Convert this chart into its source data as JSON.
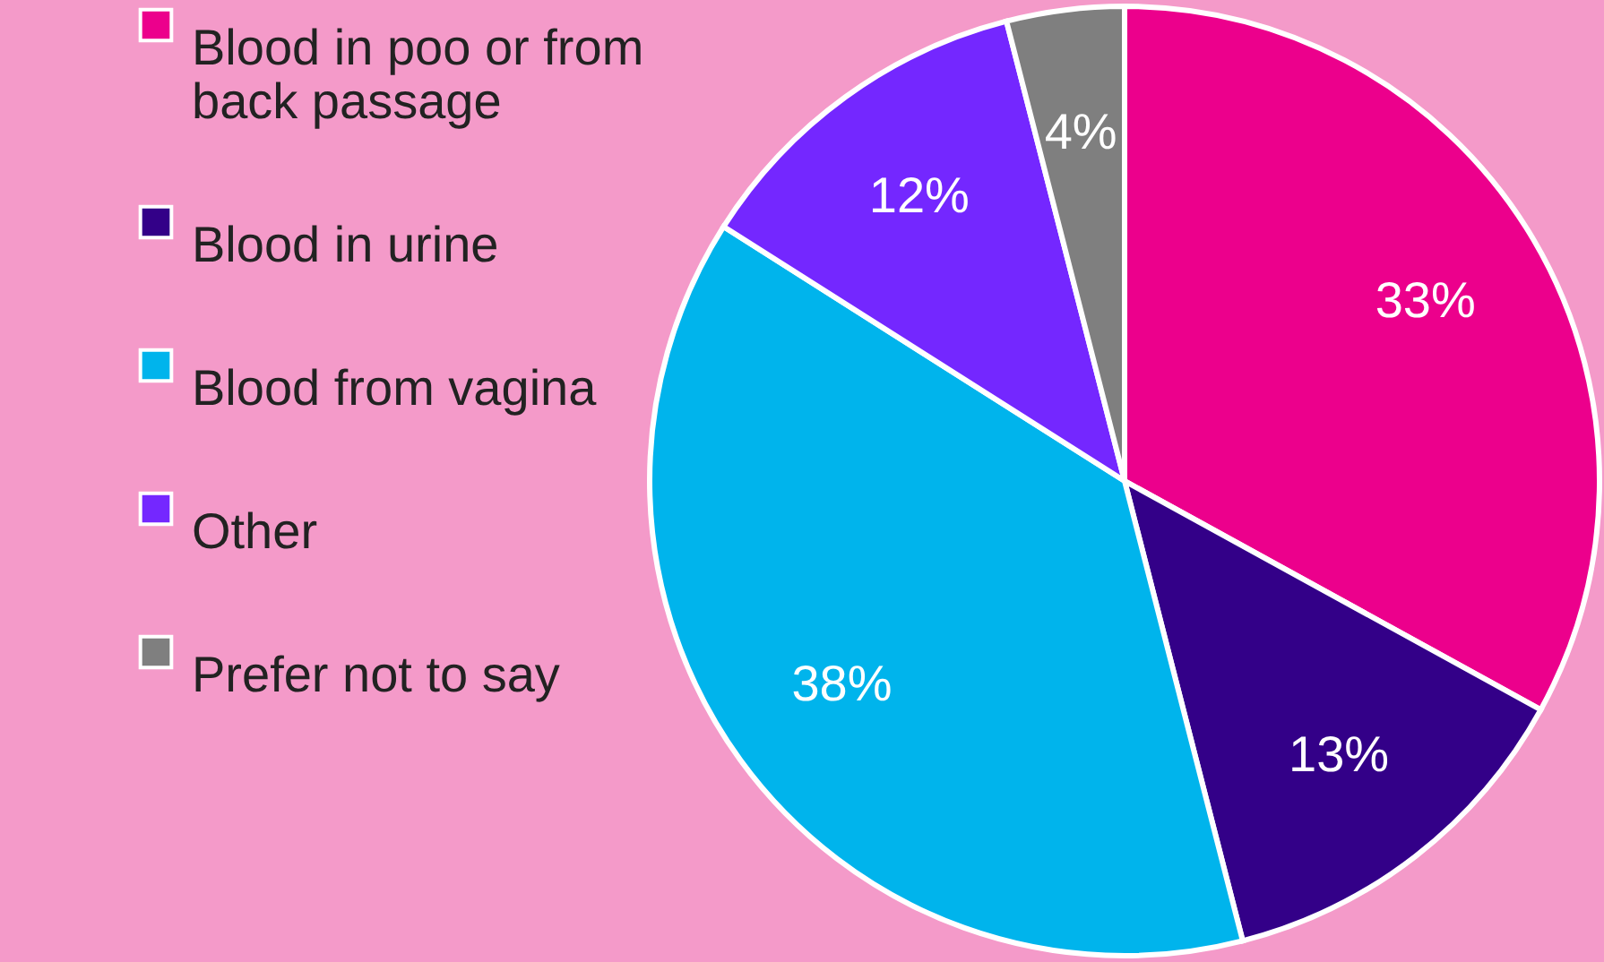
{
  "chart_data": {
    "type": "pie",
    "categories": [
      "Blood in poo or from back passage",
      "Blood in urine",
      "Blood from vagina",
      "Other",
      "Prefer not to say"
    ],
    "values": [
      33,
      13,
      38,
      12,
      4
    ],
    "value_labels": [
      "33%",
      "13%",
      "38%",
      "12%",
      "4%"
    ],
    "colors": [
      "#ec008c",
      "#330088",
      "#00b4ec",
      "#7427ff",
      "#7f7f7f"
    ],
    "legend": "left"
  }
}
